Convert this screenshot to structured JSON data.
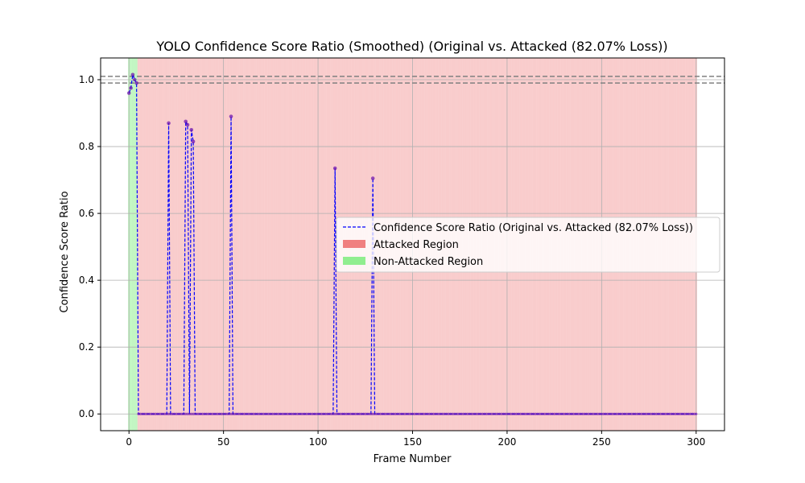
{
  "chart_data": {
    "type": "line",
    "title": "YOLO Confidence Score Ratio (Smoothed) (Original vs. Attacked (82.07% Loss))",
    "xlabel": "Frame Number",
    "ylabel": "Confidence Score Ratio",
    "xlim": [
      -15,
      315
    ],
    "ylim": [
      -0.05,
      1.065
    ],
    "xticks": [
      0,
      50,
      100,
      150,
      200,
      250,
      300
    ],
    "yticks": [
      0.0,
      0.2,
      0.4,
      0.6,
      0.8,
      1.0
    ],
    "xtick_labels": [
      "0",
      "50",
      "100",
      "150",
      "200",
      "250",
      "300"
    ],
    "ytick_labels": [
      "0.0",
      "0.2",
      "0.4",
      "0.6",
      "0.8",
      "1.0"
    ],
    "grid": true,
    "legend_position": "center-right",
    "reference_lines": [
      1.01,
      0.99
    ],
    "reference_line_color": "#808080",
    "non_attacked_frames": [
      0,
      1,
      2,
      3,
      4
    ],
    "attacked_frame_range": [
      5,
      300
    ],
    "series": [
      {
        "name": "Confidence Score Ratio (Original vs. Attacked (82.07% Loss))",
        "color": "#0000ff",
        "style": "dashed",
        "marker_color": "#6a0dad",
        "x": [
          0,
          1,
          2,
          3,
          4,
          5,
          20,
          21,
          22,
          29,
          30,
          31,
          32,
          33,
          34,
          35,
          53,
          54,
          55,
          108,
          109,
          110,
          128,
          129,
          130,
          300
        ],
        "y": [
          0.96,
          0.975,
          1.015,
          1.0,
          0.99,
          0.0,
          0.0,
          0.87,
          0.0,
          0.0,
          0.875,
          0.865,
          0.0,
          0.85,
          0.815,
          0.0,
          0.0,
          0.89,
          0.0,
          0.0,
          0.735,
          0.0,
          0.0,
          0.705,
          0.0,
          0.0
        ]
      }
    ],
    "legend": [
      {
        "label": "Confidence Score Ratio (Original vs. Attacked (82.07% Loss))",
        "kind": "line",
        "color": "#0000ff"
      },
      {
        "label": "Attacked Region",
        "kind": "patch",
        "color": "#f08080"
      },
      {
        "label": "Non-Attacked Region",
        "kind": "patch",
        "color": "#90ee90"
      }
    ]
  }
}
